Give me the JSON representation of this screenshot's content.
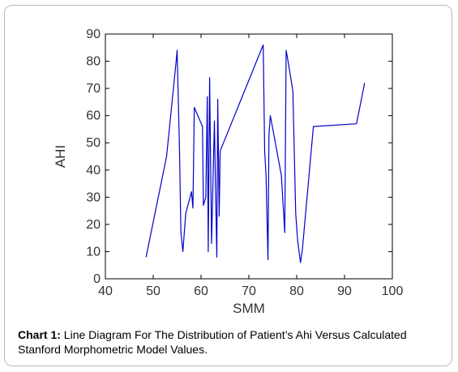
{
  "chart_data": {
    "type": "line",
    "xlabel": "SMM",
    "ylabel": "AHI",
    "xlim": [
      40,
      100
    ],
    "ylim": [
      0,
      90
    ],
    "xticks": [
      "40",
      "50",
      "60",
      "70",
      "80",
      "90",
      "100"
    ],
    "yticks": [
      "0",
      "10",
      "20",
      "30",
      "40",
      "50",
      "60",
      "70",
      "80",
      "90"
    ],
    "grid": false,
    "series": [
      {
        "color": "#0000cc",
        "x": [
          48.5,
          52.8,
          54.8,
          55.0,
          55.5,
          55.8,
          56.2,
          56.8,
          58.0,
          58.3,
          58.6,
          60.3,
          60.5,
          61.0,
          61.3,
          61.5,
          61.8,
          62.2,
          62.8,
          63.0,
          63.3,
          63.5,
          63.8,
          64.0,
          73.0,
          73.3,
          73.6,
          74.0,
          74.2,
          74.5,
          76.8,
          77.5,
          77.8,
          78.2,
          79.2,
          79.8,
          80.2,
          80.8,
          81.2,
          83.5,
          92.5,
          94.2
        ],
        "y": [
          8,
          45,
          80,
          84,
          48,
          17,
          10,
          24,
          32,
          26,
          63,
          56,
          27,
          30,
          67,
          10,
          74,
          13,
          58,
          36,
          8,
          66,
          23,
          47,
          86,
          47,
          38,
          7,
          53,
          60,
          38,
          17,
          84,
          80,
          69,
          24,
          14,
          6,
          11,
          56,
          57,
          72
        ]
      }
    ]
  },
  "caption": {
    "label": "Chart 1:",
    "text": " Line Diagram For The Distribution of Patient’s Ahi Versus Calculated Stanford Morphometric Model Values."
  }
}
